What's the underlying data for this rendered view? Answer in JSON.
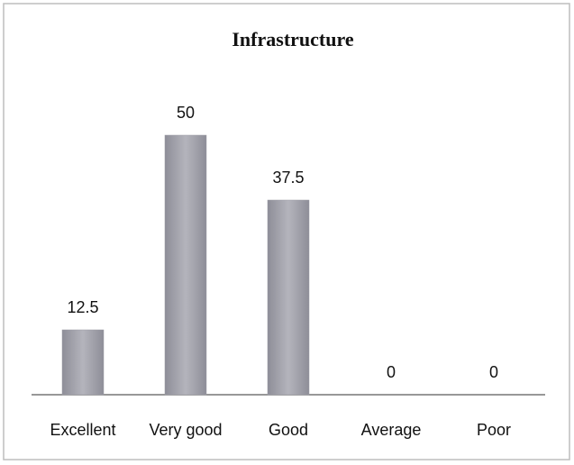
{
  "chart_data": {
    "type": "bar",
    "title": "Infrastructure",
    "categories": [
      "Excellent",
      "Very good",
      "Good",
      "Average",
      "Poor"
    ],
    "values": [
      12.5,
      50,
      37.5,
      0,
      0
    ],
    "color": "#9c9ca6"
  }
}
